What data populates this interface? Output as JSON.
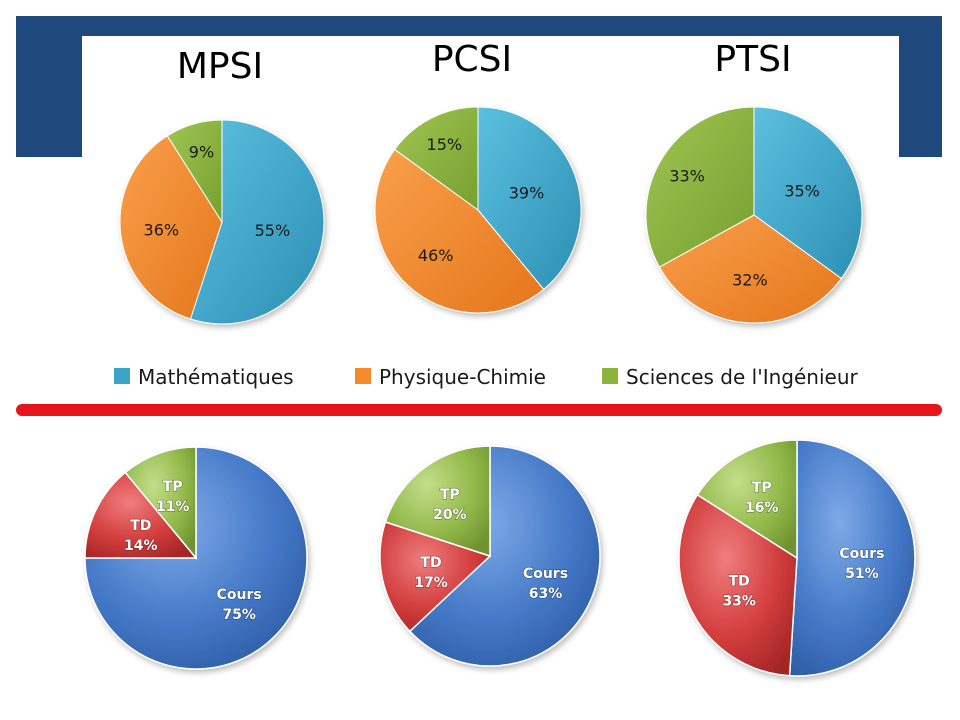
{
  "colors": {
    "header_band": "#1f487c",
    "divider": "#e8141c",
    "maths": "#3aa5c9",
    "physique": "#f58a2b",
    "si": "#8cb43a",
    "cours": "#4479c8",
    "td": "#d23c3c",
    "tp": "#93b94a"
  },
  "chart_data": [
    {
      "type": "pie",
      "title": "MPSI",
      "categories": [
        "Mathématiques",
        "Physique-Chimie",
        "Sciences de l'Ingénieur"
      ],
      "values": [
        55,
        36,
        9
      ],
      "labels": [
        "55%",
        "36%",
        "9%"
      ]
    },
    {
      "type": "pie",
      "title": "PCSI",
      "categories": [
        "Mathématiques",
        "Physique-Chimie",
        "Sciences de l'Ingénieur"
      ],
      "values": [
        39,
        46,
        15
      ],
      "labels": [
        "39%",
        "46%",
        "15%"
      ]
    },
    {
      "type": "pie",
      "title": "PTSI",
      "categories": [
        "Mathématiques",
        "Physique-Chimie",
        "Sciences de l'Ingénieur"
      ],
      "values": [
        35,
        32,
        33
      ],
      "labels": [
        "35%",
        "32%",
        "33%"
      ]
    },
    {
      "type": "pie",
      "title": "",
      "categories": [
        "Cours",
        "TD",
        "TP"
      ],
      "values": [
        75,
        14,
        11
      ],
      "labels": [
        "75%",
        "14%",
        "11%"
      ]
    },
    {
      "type": "pie",
      "title": "",
      "categories": [
        "Cours",
        "TD",
        "TP"
      ],
      "values": [
        63,
        17,
        20
      ],
      "labels": [
        "63%",
        "17%",
        "20%"
      ]
    },
    {
      "type": "pie",
      "title": "",
      "categories": [
        "Cours",
        "TD",
        "TP"
      ],
      "values": [
        51,
        33,
        16
      ],
      "labels": [
        "51%",
        "33%",
        "16%"
      ]
    }
  ],
  "legend": {
    "items": [
      {
        "label": "Mathématiques",
        "color": "#3aa5c9"
      },
      {
        "label": "Physique-Chimie",
        "color": "#f58a2b"
      },
      {
        "label": "Sciences de l'Ingénieur",
        "color": "#8cb43a"
      }
    ]
  }
}
